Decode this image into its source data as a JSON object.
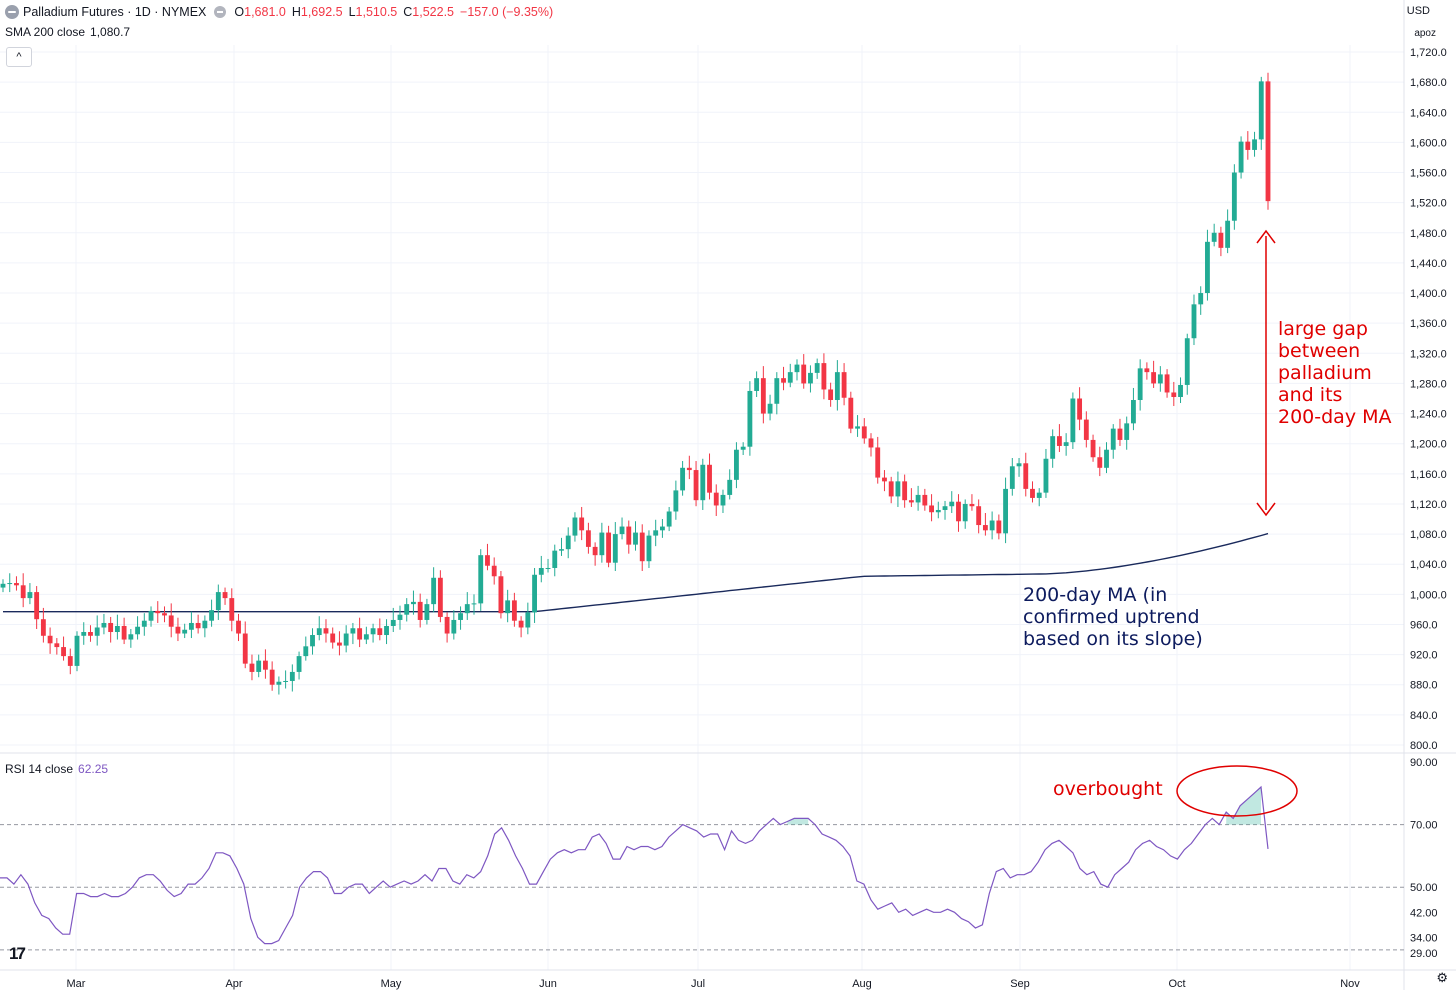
{
  "header": {
    "symbol_title": "Palladium Futures · 1D · NYMEX",
    "ohlc": [
      {
        "label": "O",
        "value": "1,681.0"
      },
      {
        "label": "H",
        "value": "1,692.5"
      },
      {
        "label": "L",
        "value": "1,510.5"
      },
      {
        "label": "C",
        "value": "1,522.5"
      }
    ],
    "change": "−157.0 (−9.35%)",
    "currency": "USD",
    "scale_mode": "apoz",
    "collapse_icon": "chevron-up-icon"
  },
  "sma_legend": {
    "name": "SMA 200 close",
    "value": "1,080.7"
  },
  "rsi_legend": {
    "name": "RSI 14 close",
    "value": "62.25"
  },
  "annotations": {
    "gap_text": "large gap\nbetween\npalladium\nand its\n200-day MA",
    "ma_text": "200-day MA (in\nconfirmed uptrend\nbased on its slope)",
    "overbought_text": "overbought"
  },
  "colors": {
    "up": "#22ab94",
    "down": "#f23645",
    "sma": "#1a2a5c",
    "rsi": "#7e57c2",
    "annotation_red": "#e00000",
    "annotation_navy": "#0d1b5e"
  },
  "chart_data": [
    {
      "type": "candlestick",
      "title": "Palladium Futures · 1D · NYMEX",
      "x_ticks": [
        "Mar",
        "Apr",
        "May",
        "Jun",
        "Jul",
        "Aug",
        "Sep",
        "Oct",
        "Nov"
      ],
      "y_ticks": [
        "800.0",
        "840.0",
        "880.0",
        "920.0",
        "960.0",
        "1,000.0",
        "1,040.0",
        "1,080.0",
        "1,120.0",
        "1,160.0",
        "1,200.0",
        "1,240.0",
        "1,280.0",
        "1,320.0",
        "1,360.0",
        "1,400.0",
        "1,440.0",
        "1,480.0",
        "1,520.0",
        "1,560.0",
        "1,600.0",
        "1,640.0",
        "1,680.0",
        "1,720.0"
      ],
      "ylim": [
        800,
        1720
      ],
      "grid": true,
      "last_close_approx": [
        1014,
        1015,
        1012,
        995,
        1003,
        967,
        945,
        935,
        930,
        918,
        905,
        945,
        950,
        945,
        956,
        962,
        950,
        958,
        940,
        947,
        957,
        965,
        978,
        975,
        972,
        957,
        948,
        953,
        962,
        955,
        965,
        979,
        1003,
        995,
        965,
        948,
        908,
        897,
        912,
        900,
        880,
        884,
        885,
        897,
        918,
        931,
        946,
        955,
        948,
        936,
        932,
        948,
        955,
        940,
        947,
        955,
        946,
        958,
        966,
        973,
        987,
        990,
        966,
        987,
        1022,
        970,
        948,
        966,
        975,
        987,
        988,
        1052,
        1038,
        1024,
        975,
        992,
        965,
        956,
        976,
        1026,
        1035,
        1035,
        1058,
        1060,
        1078,
        1102,
        1085,
        1063,
        1052,
        1082,
        1042,
        1080,
        1090,
        1066,
        1082,
        1044,
        1078,
        1085,
        1090,
        1110,
        1138,
        1168,
        1165,
        1125,
        1172,
        1135,
        1118,
        1132,
        1152,
        1192,
        1196,
        1270,
        1287,
        1240,
        1253,
        1287,
        1281,
        1295,
        1305,
        1280,
        1294,
        1307,
        1272,
        1258,
        1295,
        1261,
        1220,
        1223,
        1207,
        1195,
        1155,
        1150,
        1130,
        1150,
        1125,
        1122,
        1132,
        1118,
        1109,
        1112,
        1117,
        1123,
        1097,
        1120,
        1117,
        1092,
        1085,
        1098,
        1081,
        1140,
        1170,
        1174,
        1140,
        1128,
        1135,
        1180,
        1210,
        1197,
        1202,
        1260,
        1232,
        1205,
        1182,
        1168,
        1192,
        1220,
        1205,
        1227,
        1258,
        1300,
        1295,
        1280,
        1292,
        1268,
        1262,
        1278,
        1340,
        1385,
        1400,
        1468,
        1480,
        1460,
        1496,
        1560,
        1601,
        1590,
        1604,
        1681,
        1522
      ],
      "sma200": {
        "name": "SMA 200 close",
        "last": 1080.7,
        "start": 980,
        "trend": "rising"
      }
    },
    {
      "type": "line",
      "title": "RSI 14 close",
      "y_ticks": [
        "29.00",
        "34.00",
        "42.00",
        "50.00",
        "70.00",
        "90.00"
      ],
      "ylim": [
        28,
        90
      ],
      "levels": [
        30,
        50,
        70
      ],
      "last": 62.25,
      "series": [
        {
          "values": [
            53,
            53,
            51,
            54,
            51,
            45,
            41,
            40,
            37,
            35,
            35,
            48,
            48,
            47,
            47,
            48,
            47,
            47,
            48,
            50,
            53,
            54,
            54,
            52,
            49,
            47,
            48,
            51,
            51,
            53,
            56,
            61,
            61,
            60,
            56,
            51,
            40,
            34,
            32,
            32,
            33,
            37,
            41,
            50,
            53,
            55,
            55,
            53,
            48,
            48,
            50,
            51,
            51,
            48,
            50,
            52,
            50,
            51,
            52,
            51,
            52,
            54,
            52,
            56,
            56,
            52,
            51,
            54,
            53,
            55,
            60,
            67,
            69,
            65,
            60,
            56,
            51,
            51,
            55,
            59,
            61,
            62,
            61,
            62,
            62,
            66,
            67,
            64,
            59,
            59,
            63,
            62,
            63,
            63,
            62,
            63,
            66,
            68,
            70,
            69,
            68,
            66,
            67,
            67,
            62,
            68,
            65,
            64,
            65,
            68,
            70,
            72,
            70,
            71,
            72,
            72,
            72,
            70,
            67,
            66,
            65,
            63,
            60,
            52,
            51,
            46,
            43,
            44,
            45,
            42,
            43,
            41,
            42,
            43,
            42,
            42,
            43,
            42,
            40,
            39,
            37,
            38,
            48,
            55,
            56,
            53,
            54,
            54,
            55,
            58,
            62,
            64,
            65,
            63,
            61,
            56,
            54,
            55,
            51,
            50,
            54,
            56,
            58,
            62,
            64,
            65,
            63,
            62,
            60,
            59,
            62,
            64,
            67,
            70,
            72,
            70,
            74,
            72,
            76,
            78,
            80,
            82,
            62.25
          ]
        }
      ]
    }
  ]
}
